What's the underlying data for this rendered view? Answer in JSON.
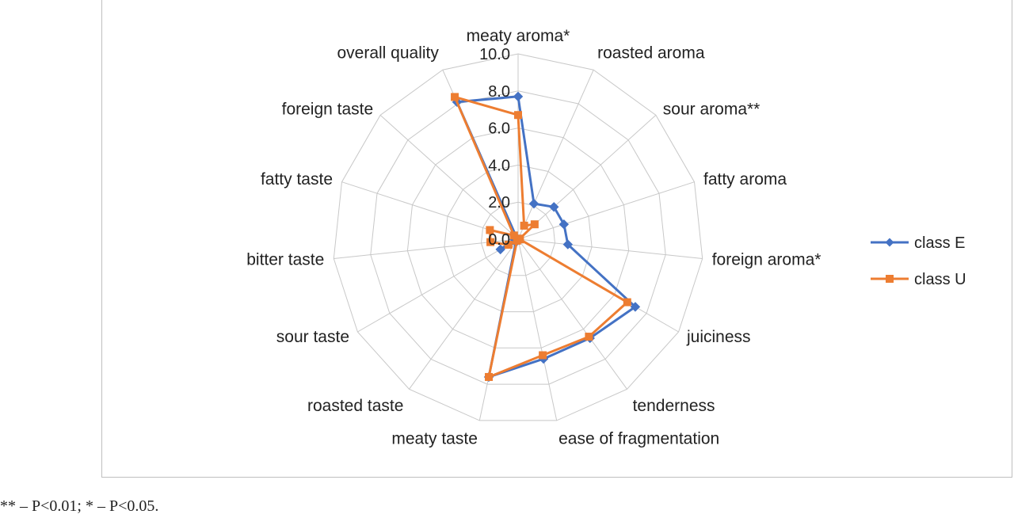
{
  "chart_data": {
    "type": "radar",
    "title": "",
    "axes": [
      "meaty aroma*",
      "roasted aroma",
      "sour aroma**",
      "fatty aroma",
      "foreign aroma*",
      "juiciness",
      "tenderness",
      "ease of fragmentation",
      "meaty taste",
      "roasted taste",
      "sour taste",
      "bitter taste",
      "fatty taste",
      "foreign taste",
      "overall quality"
    ],
    "rlim": [
      0,
      10
    ],
    "ticks": [
      "0.0",
      "2.0",
      "4.0",
      "6.0",
      "8.0",
      "10.0"
    ],
    "grid": true,
    "legend_position": "right",
    "series": [
      {
        "name": "class E",
        "color": "#4472C4",
        "marker": "diamond",
        "values": [
          7.7,
          2.1,
          2.6,
          2.6,
          2.7,
          7.3,
          6.6,
          6.6,
          7.6,
          0.2,
          1.1,
          0.2,
          0.1,
          0.1,
          8.1
        ]
      },
      {
        "name": "class U",
        "color": "#ED7D31",
        "marker": "square",
        "values": [
          6.7,
          0.8,
          1.2,
          0.1,
          0.1,
          6.8,
          6.5,
          6.4,
          7.6,
          0.1,
          0.6,
          1.5,
          1.6,
          0.3,
          8.4
        ]
      }
    ]
  },
  "footnote": "** – P<0.01; * – P<0.05."
}
